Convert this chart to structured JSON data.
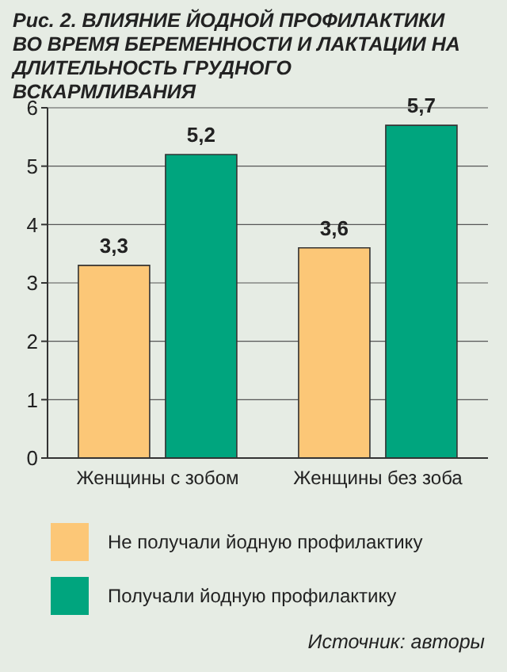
{
  "chart_data": {
    "type": "bar",
    "title": "Рис. 2. ВЛИЯНИЕ ЙОДНОЙ ПРОФИЛАКТИКИ ВО ВРЕМЯ БЕРЕМЕННОСТИ И ЛАКТАЦИИ НА ДЛИТЕЛЬНОСТЬ ГРУДНОГО ВСКАРМЛИВАНИЯ",
    "categories": [
      "Женщины с зобом",
      "Женщины без зоба"
    ],
    "series": [
      {
        "name": "Не получали йодную профилактику",
        "color": "#fcc777",
        "values": [
          3.3,
          3.6
        ],
        "value_labels": [
          "3,3",
          "3,6"
        ]
      },
      {
        "name": "Получали йодную профилактику",
        "color": "#00a57e",
        "values": [
          5.2,
          5.7
        ],
        "value_labels": [
          "5,2",
          "5,7"
        ]
      }
    ],
    "ylim": [
      0,
      6
    ],
    "yticks": [
      0,
      1,
      2,
      3,
      4,
      5,
      6
    ],
    "grid": "y",
    "legend": "bottom",
    "annotations": [
      "Источник: авторы"
    ]
  }
}
